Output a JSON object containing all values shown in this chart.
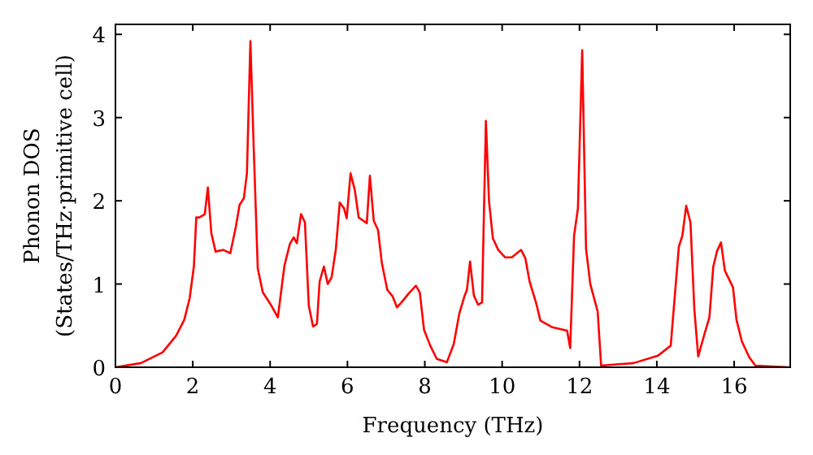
{
  "chart_data": {
    "type": "line",
    "xlabel": "Frequency (THz)",
    "ylabel": "Phonon DOS\n(States/THz·primitive cell)",
    "xlim": [
      0,
      17.45
    ],
    "ylim": [
      0,
      4.12
    ],
    "xticks": [
      0,
      2,
      4,
      6,
      8,
      10,
      12,
      14,
      16
    ],
    "yticks": [
      0,
      1,
      2,
      3,
      4
    ],
    "grid": false,
    "marker": "none",
    "line_style": "solid",
    "series": [
      {
        "color": "#ff0000",
        "x": [
          0,
          0.66,
          1.22,
          1.57,
          1.78,
          1.92,
          2.03,
          2.09,
          2.17,
          2.31,
          2.39,
          2.48,
          2.59,
          2.79,
          2.97,
          3.11,
          3.21,
          3.32,
          3.4,
          3.49,
          3.57,
          3.68,
          3.81,
          4.02,
          4.2,
          4.37,
          4.51,
          4.61,
          4.69,
          4.8,
          4.9,
          5.0,
          5.11,
          5.21,
          5.28,
          5.39,
          5.49,
          5.59,
          5.7,
          5.8,
          5.91,
          5.98,
          6.08,
          6.19,
          6.29,
          6.5,
          6.58,
          6.68,
          6.79,
          6.89,
          7.03,
          7.17,
          7.28,
          7.38,
          7.59,
          7.77,
          7.87,
          7.98,
          8.15,
          8.31,
          8.57,
          8.75,
          8.89,
          9.03,
          9.09,
          9.17,
          9.27,
          9.38,
          9.48,
          9.58,
          9.66,
          9.76,
          9.9,
          10.08,
          10.25,
          10.49,
          10.6,
          10.71,
          10.88,
          10.99,
          11.3,
          11.68,
          11.76,
          11.86,
          11.96,
          12.07,
          12.17,
          12.28,
          12.47,
          12.56,
          13.4,
          14.03,
          14.36,
          14.57,
          14.66,
          14.76,
          14.87,
          14.97,
          15.07,
          15.22,
          15.36,
          15.46,
          15.56,
          15.66,
          15.76,
          15.97,
          16.06,
          16.2,
          16.39,
          16.55,
          17.4
        ],
        "values": [
          0,
          0.05,
          0.18,
          0.38,
          0.57,
          0.83,
          1.22,
          1.8,
          1.8,
          1.84,
          2.16,
          1.61,
          1.39,
          1.41,
          1.37,
          1.68,
          1.95,
          2.03,
          2.33,
          3.92,
          2.72,
          1.19,
          0.9,
          0.75,
          0.6,
          1.22,
          1.48,
          1.56,
          1.49,
          1.84,
          1.74,
          0.74,
          0.49,
          0.52,
          1.03,
          1.21,
          1.0,
          1.08,
          1.42,
          1.98,
          1.91,
          1.79,
          2.33,
          2.13,
          1.8,
          1.73,
          2.3,
          1.76,
          1.65,
          1.25,
          0.93,
          0.85,
          0.72,
          0.77,
          0.89,
          0.98,
          0.9,
          0.45,
          0.25,
          0.1,
          0.06,
          0.28,
          0.64,
          0.86,
          0.93,
          1.27,
          0.86,
          0.75,
          0.78,
          2.96,
          2.0,
          1.55,
          1.41,
          1.32,
          1.32,
          1.41,
          1.31,
          1.03,
          0.77,
          0.56,
          0.48,
          0.44,
          0.23,
          1.58,
          1.91,
          3.81,
          1.42,
          1.0,
          0.67,
          0.02,
          0.05,
          0.14,
          0.26,
          1.45,
          1.58,
          1.94,
          1.74,
          0.7,
          0.13,
          0.38,
          0.6,
          1.21,
          1.4,
          1.5,
          1.16,
          0.96,
          0.57,
          0.31,
          0.12,
          0.02,
          0
        ]
      }
    ]
  }
}
